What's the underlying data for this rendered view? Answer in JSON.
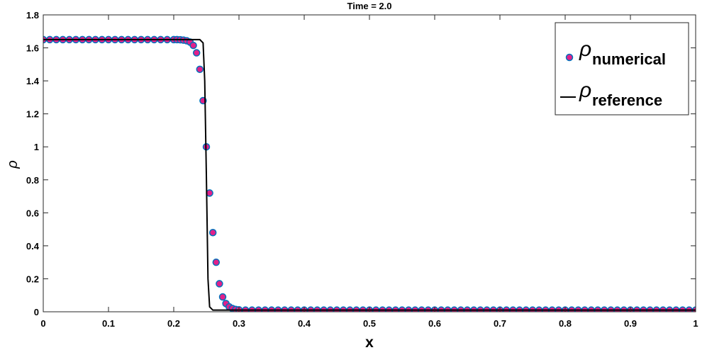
{
  "chart_data": {
    "type": "line",
    "title": "Time = 2.0",
    "x_label": "x",
    "y_label": "ρ",
    "xlim": [
      0,
      1
    ],
    "xticks": [
      0,
      0.1,
      0.2,
      0.3,
      0.4,
      0.5,
      0.6,
      0.7,
      0.8,
      0.9,
      1
    ],
    "ylim": [
      0,
      1.8
    ],
    "yticks": [
      0,
      0.2,
      0.4,
      0.6,
      0.8,
      1,
      1.2,
      1.4,
      1.6,
      1.8
    ],
    "legend": "upper right",
    "series": [
      {
        "name": "ρ",
        "name_subscript": "numerical",
        "style": "markers",
        "color": "#e0218a",
        "edge_color": "#0072bd",
        "x": [
          0,
          0.01,
          0.02,
          0.03,
          0.04,
          0.05,
          0.06,
          0.07,
          0.08,
          0.09,
          0.1,
          0.11,
          0.12,
          0.13,
          0.14,
          0.15,
          0.16,
          0.17,
          0.18,
          0.19,
          0.2,
          0.205,
          0.21,
          0.215,
          0.22,
          0.225,
          0.23,
          0.235,
          0.24,
          0.245,
          0.25,
          0.255,
          0.26,
          0.265,
          0.27,
          0.275,
          0.28,
          0.285,
          0.29,
          0.295,
          0.3,
          0.31,
          0.32,
          0.33,
          0.34,
          0.35,
          0.36,
          0.37,
          0.38,
          0.39,
          0.4,
          0.41,
          0.42,
          0.43,
          0.44,
          0.45,
          0.46,
          0.47,
          0.48,
          0.49,
          0.5,
          0.51,
          0.52,
          0.53,
          0.54,
          0.55,
          0.56,
          0.57,
          0.58,
          0.59,
          0.6,
          0.61,
          0.62,
          0.63,
          0.64,
          0.65,
          0.66,
          0.67,
          0.68,
          0.69,
          0.7,
          0.71,
          0.72,
          0.73,
          0.74,
          0.75,
          0.76,
          0.77,
          0.78,
          0.79,
          0.8,
          0.81,
          0.82,
          0.83,
          0.84,
          0.85,
          0.86,
          0.87,
          0.88,
          0.89,
          0.9,
          0.91,
          0.92,
          0.93,
          0.94,
          0.95,
          0.96,
          0.97,
          0.98,
          0.99,
          1
        ],
        "values": [
          1.65,
          1.65,
          1.65,
          1.65,
          1.65,
          1.65,
          1.65,
          1.65,
          1.65,
          1.65,
          1.65,
          1.65,
          1.65,
          1.65,
          1.65,
          1.65,
          1.65,
          1.65,
          1.65,
          1.65,
          1.65,
          1.65,
          1.649,
          1.647,
          1.643,
          1.635,
          1.615,
          1.57,
          1.47,
          1.28,
          1.0,
          0.72,
          0.48,
          0.3,
          0.17,
          0.09,
          0.05,
          0.03,
          0.02,
          0.014,
          0.012,
          0.01,
          0.01,
          0.01,
          0.01,
          0.01,
          0.01,
          0.01,
          0.01,
          0.01,
          0.01,
          0.01,
          0.01,
          0.01,
          0.01,
          0.01,
          0.01,
          0.01,
          0.01,
          0.01,
          0.01,
          0.01,
          0.01,
          0.01,
          0.01,
          0.01,
          0.01,
          0.01,
          0.01,
          0.01,
          0.01,
          0.01,
          0.01,
          0.01,
          0.01,
          0.01,
          0.01,
          0.01,
          0.01,
          0.01,
          0.01,
          0.01,
          0.01,
          0.01,
          0.01,
          0.01,
          0.01,
          0.01,
          0.01,
          0.01,
          0.01,
          0.01,
          0.01,
          0.01,
          0.01,
          0.01,
          0.01,
          0.01,
          0.01,
          0.01,
          0.01,
          0.01,
          0.01,
          0.01,
          0.01,
          0.01,
          0.01,
          0.01,
          0.01,
          0.01,
          0.01
        ]
      },
      {
        "name": "ρ",
        "name_subscript": "reference",
        "style": "line",
        "color": "#000000",
        "x": [
          0,
          0.24,
          0.245,
          0.2475,
          0.25,
          0.2525,
          0.255,
          0.26,
          1
        ],
        "values": [
          1.65,
          1.65,
          1.63,
          1.4,
          0.83,
          0.2,
          0.03,
          0.01,
          0.01
        ]
      }
    ]
  }
}
